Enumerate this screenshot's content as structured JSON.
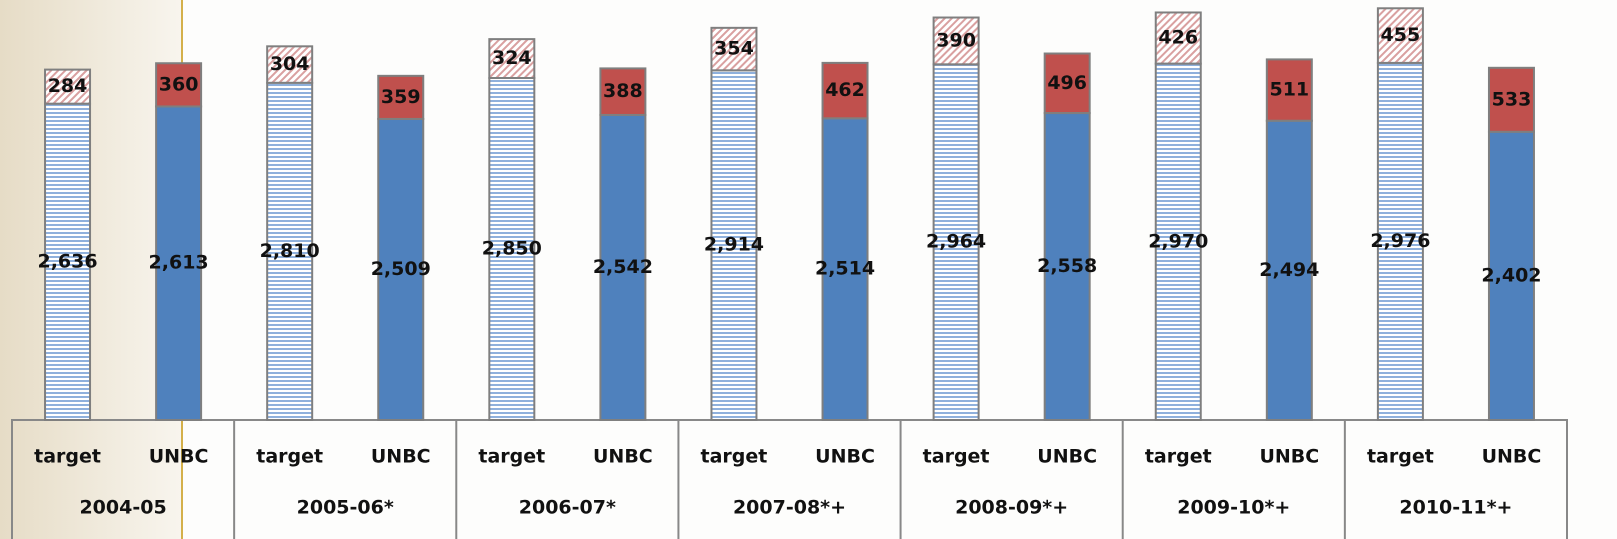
{
  "chart_data": {
    "type": "stacked-bar",
    "groups": [
      "2004-05",
      "2005-06*",
      "2006-07*",
      "2007-08*+",
      "2008-09*+",
      "2009-10*+",
      "2010-11*+"
    ],
    "categories": [
      "target",
      "UNBC",
      "target",
      "UNBC",
      "target",
      "UNBC",
      "target",
      "UNBC",
      "target",
      "UNBC",
      "target",
      "UNBC",
      "target",
      "UNBC"
    ],
    "series": [
      {
        "color": "#c6d7ef",
        "pattern": "horizontal-lines",
        "values": [
          2636,
          null,
          2810,
          null,
          2850,
          null,
          2914,
          null,
          2964,
          null,
          2970,
          null,
          2976,
          null
        ],
        "value_labels": [
          "2,636",
          null,
          "2,810",
          null,
          "2,850",
          null,
          "2,914",
          null,
          "2,964",
          null,
          "2,970",
          null,
          "2,976",
          null
        ]
      },
      {
        "color": "#f4d6d6",
        "pattern": "diagonal-hatch",
        "values": [
          284,
          null,
          304,
          null,
          324,
          null,
          354,
          null,
          390,
          null,
          426,
          null,
          455,
          null
        ]
      },
      {
        "color": "#4f81bd",
        "values": [
          null,
          2613,
          null,
          2509,
          null,
          2542,
          null,
          2514,
          null,
          2558,
          null,
          2494,
          null,
          2402
        ],
        "value_labels": [
          null,
          "2,613",
          null,
          "2,509",
          null,
          "2,542",
          null,
          "2,514",
          null,
          "2,558",
          null,
          "2,494",
          null,
          "2,402"
        ]
      },
      {
        "color": "#c0504d",
        "values": [
          null,
          360,
          null,
          359,
          null,
          388,
          null,
          462,
          null,
          496,
          null,
          511,
          null,
          533
        ]
      }
    ],
    "ylim": [
      0,
      3500
    ]
  }
}
